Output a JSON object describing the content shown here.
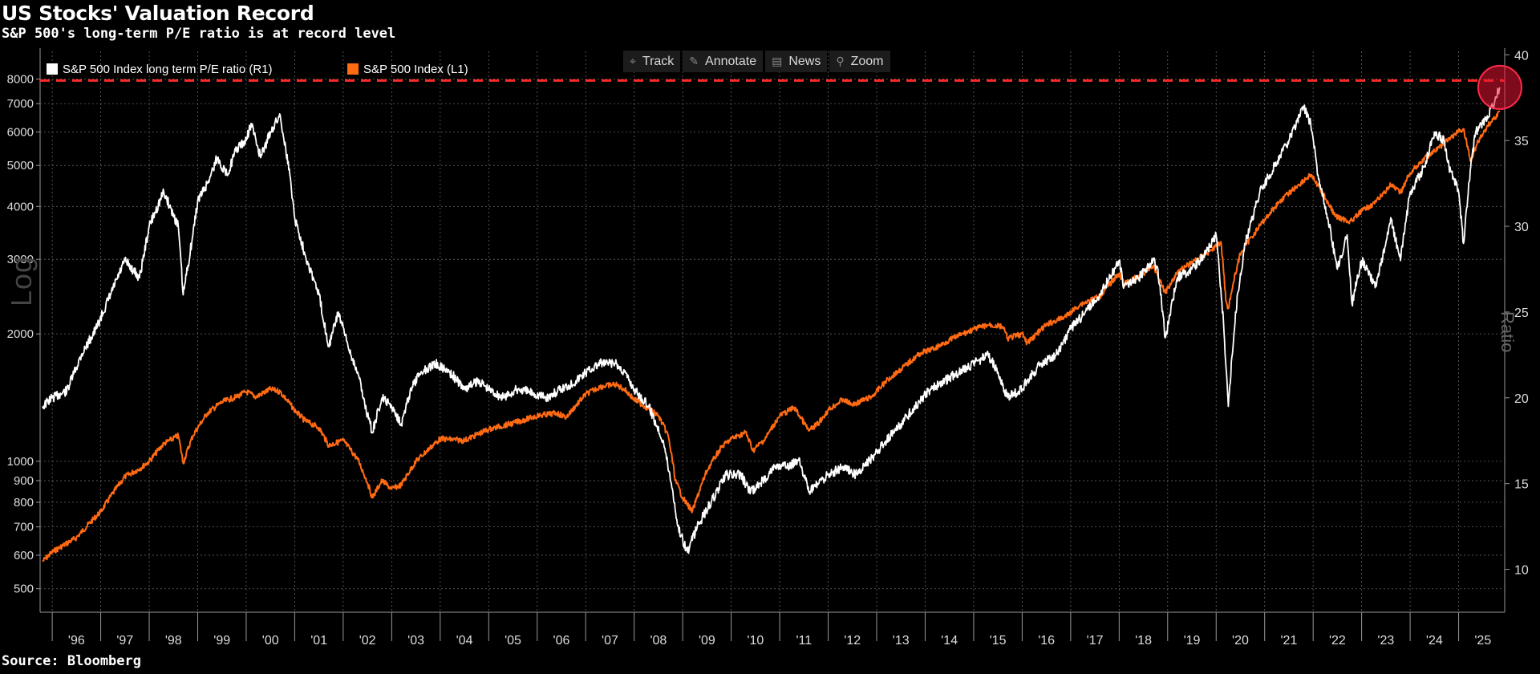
{
  "title": "US Stocks' Valuation Record",
  "subtitle": "S&P 500's long-term P/E ratio is at record level",
  "source": "Source: Bloomberg",
  "toolbar": [
    {
      "label": "Track",
      "icon": "crosshair-icon",
      "glyph": "⌖"
    },
    {
      "label": "Annotate",
      "icon": "pencil-icon",
      "glyph": "✎"
    },
    {
      "label": "News",
      "icon": "news-icon",
      "glyph": "▤"
    },
    {
      "label": "Zoom",
      "icon": "magnifier-icon",
      "glyph": "⚲"
    }
  ],
  "axis_left_label": "Log",
  "axis_right_label": "Ratio",
  "colors": {
    "pe_series": "#ffffff",
    "index_series": "#ff6a13",
    "record_line": "#ff2a2a",
    "background": "#000000",
    "grid": "#666666"
  },
  "chart_data": {
    "type": "line",
    "x_tick_labels": [
      "'96",
      "'97",
      "'98",
      "'99",
      "'00",
      "'01",
      "'02",
      "'03",
      "'04",
      "'05",
      "'06",
      "'07",
      "'08",
      "'09",
      "'10",
      "'11",
      "'12",
      "'13",
      "'14",
      "'15",
      "'16",
      "'17",
      "'18",
      "'19",
      "'20",
      "'21",
      "'22",
      "'23",
      "'24",
      "'25"
    ],
    "xlim": [
      1995.75,
      2025.95
    ],
    "y_left": {
      "scale": "log",
      "lim": [
        440,
        9300
      ],
      "ticks": [
        500,
        600,
        700,
        800,
        900,
        1000,
        2000,
        3000,
        4000,
        5000,
        6000,
        7000,
        8000
      ],
      "tick_labels": [
        "500",
        "600",
        "700",
        "800",
        "900",
        "1000",
        "2000",
        "3000",
        "4000",
        "5000",
        "6000",
        "7000",
        "8000"
      ]
    },
    "y_right": {
      "scale": "linear",
      "lim": [
        7.5,
        40.2
      ],
      "ticks": [
        10,
        15,
        20,
        25,
        30,
        35,
        40
      ],
      "tick_labels": [
        "10",
        "15",
        "20",
        "25",
        "30",
        "35",
        "40"
      ]
    },
    "grid": true,
    "legend_position": "top-left",
    "reference_line": {
      "axis": "right",
      "y": 38.5,
      "style": "dashed"
    },
    "highlight_marker": {
      "x": 2025.85,
      "y": 38.1,
      "axis": "right"
    },
    "series": [
      {
        "name": "S&P 500 Index long term P/E ratio (R1)",
        "axis": "right",
        "x": [
          1995.8,
          1996.0,
          1996.3,
          1996.6,
          1996.9,
          1997.2,
          1997.5,
          1997.8,
          1998.0,
          1998.3,
          1998.6,
          1998.7,
          1998.9,
          1999.0,
          1999.2,
          1999.4,
          1999.6,
          1999.8,
          2000.0,
          2000.1,
          2000.3,
          2000.5,
          2000.7,
          2000.9,
          2001.0,
          2001.2,
          2001.5,
          2001.7,
          2001.9,
          2002.1,
          2002.3,
          2002.5,
          2002.6,
          2002.8,
          2003.0,
          2003.2,
          2003.4,
          2003.6,
          2003.9,
          2004.2,
          2004.5,
          2004.8,
          2005.0,
          2005.3,
          2005.6,
          2005.9,
          2006.2,
          2006.5,
          2006.8,
          2007.0,
          2007.3,
          2007.6,
          2007.8,
          2008.0,
          2008.3,
          2008.6,
          2008.8,
          2008.9,
          2009.1,
          2009.3,
          2009.6,
          2009.9,
          2010.2,
          2010.4,
          2010.6,
          2010.9,
          2011.2,
          2011.4,
          2011.6,
          2011.8,
          2012.0,
          2012.3,
          2012.6,
          2012.9,
          2013.2,
          2013.5,
          2013.8,
          2014.1,
          2014.4,
          2014.7,
          2015.0,
          2015.3,
          2015.5,
          2015.7,
          2016.0,
          2016.1,
          2016.4,
          2016.7,
          2017.0,
          2017.3,
          2017.6,
          2017.9,
          2018.0,
          2018.1,
          2018.4,
          2018.7,
          2018.8,
          2018.95,
          2019.2,
          2019.5,
          2019.8,
          2020.0,
          2020.15,
          2020.25,
          2020.4,
          2020.6,
          2020.9,
          2021.2,
          2021.5,
          2021.8,
          2021.95,
          2022.1,
          2022.3,
          2022.5,
          2022.7,
          2022.8,
          2023.0,
          2023.3,
          2023.6,
          2023.8,
          2024.0,
          2024.3,
          2024.5,
          2024.7,
          2024.8,
          2025.0,
          2025.1,
          2025.25,
          2025.35,
          2025.5,
          2025.7,
          2025.85
        ],
        "values": [
          19.5,
          20.0,
          20.4,
          22.5,
          24.0,
          26.0,
          28.0,
          27.0,
          30.0,
          32.0,
          30.0,
          26.0,
          29.5,
          31.5,
          32.5,
          34.0,
          33.0,
          34.5,
          35.0,
          36.0,
          34.0,
          35.5,
          36.5,
          33.0,
          30.5,
          28.5,
          26.0,
          23.0,
          25.0,
          23.0,
          21.5,
          19.0,
          18.0,
          20.0,
          19.5,
          18.5,
          20.5,
          21.5,
          22.0,
          21.5,
          20.5,
          21.0,
          20.5,
          20.0,
          20.5,
          20.3,
          20.0,
          20.5,
          21.0,
          21.5,
          22.0,
          22.0,
          21.5,
          20.5,
          19.5,
          17.5,
          14.5,
          12.5,
          11.0,
          12.5,
          14.0,
          15.5,
          15.5,
          14.5,
          15.0,
          16.0,
          16.0,
          16.5,
          14.5,
          15.0,
          15.5,
          16.0,
          15.5,
          16.5,
          17.5,
          18.5,
          19.5,
          20.5,
          21.0,
          21.5,
          22.0,
          22.5,
          21.5,
          20.0,
          20.5,
          21.0,
          22.0,
          22.5,
          24.0,
          25.0,
          26.0,
          27.5,
          28.0,
          26.5,
          27.0,
          28.0,
          27.5,
          23.5,
          27.0,
          27.5,
          28.5,
          29.5,
          24.5,
          19.5,
          25.0,
          29.0,
          32.0,
          33.5,
          35.0,
          37.0,
          36.0,
          33.0,
          30.5,
          27.5,
          29.5,
          25.5,
          28.0,
          26.5,
          30.5,
          28.0,
          32.0,
          33.5,
          35.5,
          35.0,
          33.5,
          32.0,
          29.0,
          33.5,
          35.5,
          36.0,
          37.0,
          38.1
        ]
      },
      {
        "name": "S&P 500 Index (L1)",
        "axis": "left",
        "x": [
          1995.8,
          1996.0,
          1996.5,
          1997.0,
          1997.5,
          1997.8,
          1998.0,
          1998.3,
          1998.6,
          1998.7,
          1998.9,
          1999.2,
          1999.5,
          1999.8,
          2000.0,
          2000.2,
          2000.5,
          2000.7,
          2001.0,
          2001.2,
          2001.5,
          2001.7,
          2002.0,
          2002.3,
          2002.5,
          2002.6,
          2002.8,
          2003.0,
          2003.2,
          2003.5,
          2004.0,
          2004.5,
          2005.0,
          2005.5,
          2006.0,
          2006.4,
          2006.6,
          2007.0,
          2007.3,
          2007.6,
          2007.8,
          2008.0,
          2008.3,
          2008.5,
          2008.7,
          2008.85,
          2009.0,
          2009.2,
          2009.5,
          2009.8,
          2010.0,
          2010.3,
          2010.45,
          2010.7,
          2011.0,
          2011.3,
          2011.6,
          2011.8,
          2012.0,
          2012.3,
          2012.5,
          2012.9,
          2013.2,
          2013.5,
          2013.9,
          2014.2,
          2014.6,
          2015.0,
          2015.3,
          2015.6,
          2015.7,
          2016.0,
          2016.1,
          2016.5,
          2016.9,
          2017.2,
          2017.6,
          2018.0,
          2018.1,
          2018.5,
          2018.7,
          2018.95,
          2019.2,
          2019.5,
          2019.9,
          2020.1,
          2020.2,
          2020.25,
          2020.5,
          2020.9,
          2021.3,
          2021.6,
          2021.95,
          2022.2,
          2022.45,
          2022.7,
          2022.8,
          2023.0,
          2023.3,
          2023.6,
          2023.8,
          2024.0,
          2024.3,
          2024.6,
          2024.9,
          2025.1,
          2025.25,
          2025.4,
          2025.6,
          2025.85
        ],
        "values": [
          580,
          610,
          660,
          760,
          920,
          960,
          1000,
          1100,
          1150,
          990,
          1150,
          1300,
          1380,
          1420,
          1460,
          1420,
          1480,
          1460,
          1320,
          1250,
          1200,
          1090,
          1120,
          1010,
          890,
          820,
          900,
          860,
          880,
          1000,
          1130,
          1120,
          1190,
          1230,
          1280,
          1300,
          1270,
          1440,
          1500,
          1520,
          1480,
          1400,
          1330,
          1280,
          1150,
          900,
          820,
          760,
          950,
          1080,
          1130,
          1170,
          1060,
          1130,
          1280,
          1340,
          1180,
          1230,
          1320,
          1400,
          1360,
          1420,
          1550,
          1650,
          1800,
          1850,
          1960,
          2050,
          2100,
          2080,
          1950,
          2000,
          1900,
          2100,
          2200,
          2350,
          2450,
          2780,
          2620,
          2780,
          2900,
          2500,
          2800,
          2950,
          3150,
          3300,
          2400,
          2300,
          3100,
          3600,
          4100,
          4400,
          4750,
          4300,
          3800,
          3700,
          3700,
          3900,
          4100,
          4500,
          4300,
          4800,
          5200,
          5500,
          5900,
          6100,
          5100,
          5700,
          6200,
          6700
        ]
      }
    ]
  }
}
